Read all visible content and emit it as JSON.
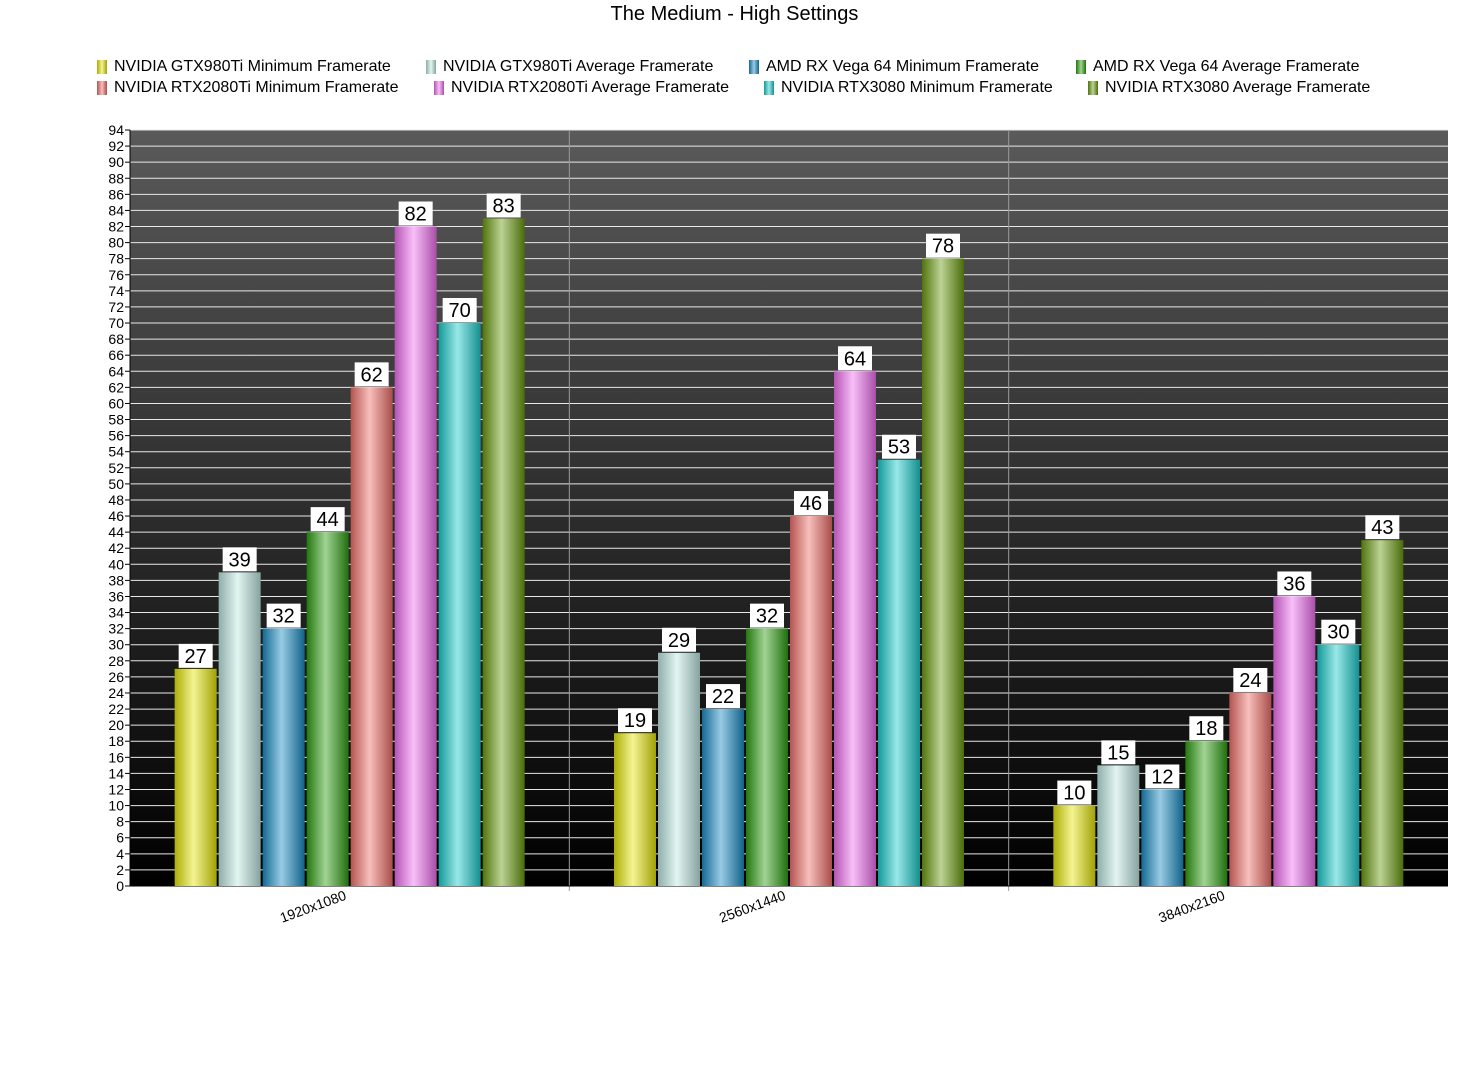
{
  "chart_data": {
    "type": "bar",
    "title": "The Medium - High Settings",
    "xlabel": "",
    "ylabel": "",
    "ylim": [
      0,
      94
    ],
    "ytick_step": 2,
    "grid": true,
    "legend_position": "top",
    "categories": [
      "1920x1080",
      "2560x1440",
      "3840x2160"
    ],
    "series": [
      {
        "name": "NVIDIA GTX980Ti Minimum Framerate",
        "color": "#e6e60a",
        "values": [
          27,
          19,
          10
        ]
      },
      {
        "name": "NVIDIA GTX980Ti Average Framerate",
        "color": "#bfe8e3",
        "values": [
          39,
          29,
          15
        ]
      },
      {
        "name": "AMD RX Vega 64 Minimum Framerate",
        "color": "#1a8cc4",
        "values": [
          32,
          22,
          12
        ]
      },
      {
        "name": "AMD RX Vega 64 Average Framerate",
        "color": "#2e9e12",
        "values": [
          44,
          32,
          18
        ]
      },
      {
        "name": "NVIDIA RTX2080Ti Minimum Framerate",
        "color": "#f0706a",
        "values": [
          62,
          46,
          24
        ]
      },
      {
        "name": "NVIDIA RTX2080Ti Average Framerate",
        "color": "#f070f0",
        "values": [
          82,
          64,
          36
        ]
      },
      {
        "name": "NVIDIA RTX3080 Minimum Framerate",
        "color": "#1ccccc",
        "values": [
          70,
          53,
          30
        ]
      },
      {
        "name": "NVIDIA RTX3080 Average Framerate",
        "color": "#6a9a10",
        "values": [
          83,
          78,
          43
        ]
      }
    ]
  }
}
